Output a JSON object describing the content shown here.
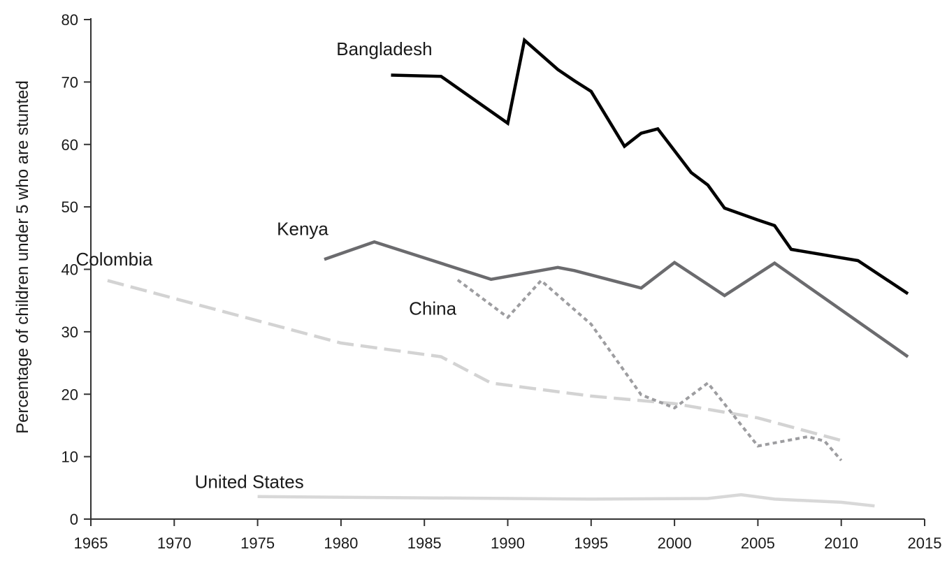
{
  "chart_data": {
    "type": "line",
    "title": "",
    "xlabel": "",
    "ylabel": "Percentage of children under 5 who are stunted",
    "xlim": [
      1965,
      2015
    ],
    "ylim": [
      0,
      80
    ],
    "x_ticks": [
      "1965",
      "1970",
      "1975",
      "1980",
      "1985",
      "1990",
      "1995",
      "2000",
      "2005",
      "2010",
      "2015"
    ],
    "y_ticks": [
      "0",
      "10",
      "20",
      "30",
      "40",
      "50",
      "60",
      "70",
      "80"
    ],
    "grid": false,
    "legend": "none (direct labels)",
    "series": [
      {
        "name": "Bangladesh",
        "color": "#000000",
        "style": "solid",
        "points": [
          [
            1983,
            71.1
          ],
          [
            1986,
            70.9
          ],
          [
            1990,
            63.4
          ],
          [
            1991,
            76.7
          ],
          [
            1993,
            72.0
          ],
          [
            1994,
            70.2
          ],
          [
            1995,
            68.5
          ],
          [
            1997,
            59.7
          ],
          [
            1998,
            61.8
          ],
          [
            1999,
            62.5
          ],
          [
            2001,
            55.5
          ],
          [
            2002,
            53.5
          ],
          [
            2003,
            49.8
          ],
          [
            2005,
            47.9
          ],
          [
            2006,
            47.0
          ],
          [
            2007,
            43.2
          ],
          [
            2011,
            41.4
          ],
          [
            2014,
            36.1
          ]
        ]
      },
      {
        "name": "Kenya",
        "color": "#6b6b6e",
        "style": "solid",
        "points": [
          [
            1979,
            41.6
          ],
          [
            1982,
            44.4
          ],
          [
            1989,
            38.4
          ],
          [
            1993,
            40.3
          ],
          [
            1994,
            39.8
          ],
          [
            1998,
            37.0
          ],
          [
            2000,
            41.1
          ],
          [
            2003,
            35.8
          ],
          [
            2006,
            41.0
          ],
          [
            2014,
            26.0
          ]
        ]
      },
      {
        "name": "China",
        "color": "#9d9da0",
        "style": "dotted",
        "points": [
          [
            1987,
            38.3
          ],
          [
            1990,
            32.3
          ],
          [
            1992,
            38.2
          ],
          [
            1995,
            31.2
          ],
          [
            1998,
            19.9
          ],
          [
            2000,
            17.8
          ],
          [
            2002,
            21.8
          ],
          [
            2005,
            11.7
          ],
          [
            2008,
            13.2
          ],
          [
            2009,
            12.5
          ],
          [
            2010,
            9.4
          ]
        ]
      },
      {
        "name": "Colombia",
        "color": "#d3d3d3",
        "style": "dashed",
        "points": [
          [
            1966,
            38.2
          ],
          [
            1980,
            28.2
          ],
          [
            1986,
            26.0
          ],
          [
            1989,
            21.8
          ],
          [
            1995,
            19.7
          ],
          [
            2000,
            18.5
          ],
          [
            2005,
            16.2
          ],
          [
            2010,
            12.6
          ]
        ]
      },
      {
        "name": "United States",
        "color": "#d8d8d8",
        "style": "solid",
        "points": [
          [
            1975,
            3.6
          ],
          [
            1985,
            3.4
          ],
          [
            1995,
            3.2
          ],
          [
            2002,
            3.3
          ],
          [
            2004,
            3.9
          ],
          [
            2006,
            3.2
          ],
          [
            2010,
            2.7
          ],
          [
            2012,
            2.1
          ]
        ]
      }
    ]
  }
}
